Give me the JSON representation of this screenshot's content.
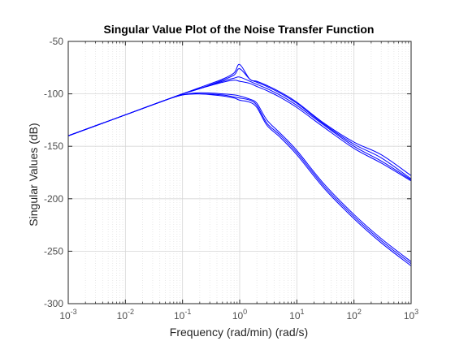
{
  "chart_data": {
    "type": "line",
    "title": "Singular Value Plot of the Noise Transfer Function",
    "xlabel": "Frequency (rad/min) (rad/s)",
    "ylabel": "Singular Values (dB)",
    "xscale": "log",
    "xlim": [
      0.001,
      1000
    ],
    "ylim": [
      -300,
      -50
    ],
    "x_ticks": [
      {
        "base": "10",
        "exp": "-3"
      },
      {
        "base": "10",
        "exp": "-2"
      },
      {
        "base": "10",
        "exp": "-1"
      },
      {
        "base": "10",
        "exp": "0"
      },
      {
        "base": "10",
        "exp": "1"
      },
      {
        "base": "10",
        "exp": "2"
      },
      {
        "base": "10",
        "exp": "3"
      }
    ],
    "y_ticks": [
      "-50",
      "-100",
      "-150",
      "-200",
      "-250",
      "-300"
    ],
    "grid": true,
    "line_color": "#0000ff",
    "x": [
      0.001,
      0.01,
      0.05,
      0.1,
      0.2,
      0.5,
      0.8,
      1,
      1.5,
      2,
      3,
      5,
      10,
      30,
      100,
      300,
      1000
    ],
    "series": [
      {
        "values": [
          -140,
          -120,
          -106,
          -100,
          -94,
          -86,
          -80,
          -72,
          -86,
          -88,
          -92,
          -98,
          -108,
          -128,
          -146,
          -158,
          -178
        ]
      },
      {
        "values": [
          -140,
          -120,
          -106,
          -100,
          -95,
          -87,
          -82,
          -76,
          -86,
          -89,
          -93,
          -99,
          -109,
          -129,
          -148,
          -161,
          -181
        ]
      },
      {
        "values": [
          -140,
          -120,
          -106,
          -100,
          -95,
          -88,
          -85,
          -84,
          -88,
          -91,
          -95,
          -101,
          -111,
          -130,
          -150,
          -164,
          -182
        ]
      },
      {
        "values": [
          -140,
          -120,
          -106,
          -100,
          -95,
          -89,
          -87,
          -88,
          -90,
          -93,
          -97,
          -103,
          -113,
          -132,
          -152,
          -166,
          -183
        ]
      },
      {
        "values": [
          -140,
          -120,
          -106,
          -101,
          -99,
          -100,
          -101,
          -102,
          -105,
          -109,
          -125,
          -137,
          -154,
          -186,
          -215,
          -238,
          -260
        ]
      },
      {
        "values": [
          -140,
          -120,
          -106,
          -101,
          -100,
          -101,
          -103,
          -104,
          -106,
          -111,
          -128,
          -139,
          -156,
          -188,
          -217,
          -240,
          -262
        ]
      },
      {
        "values": [
          -140,
          -120,
          -106,
          -101,
          -100,
          -102,
          -104,
          -106,
          -108,
          -113,
          -130,
          -141,
          -158,
          -190,
          -219,
          -242,
          -264
        ]
      }
    ]
  }
}
